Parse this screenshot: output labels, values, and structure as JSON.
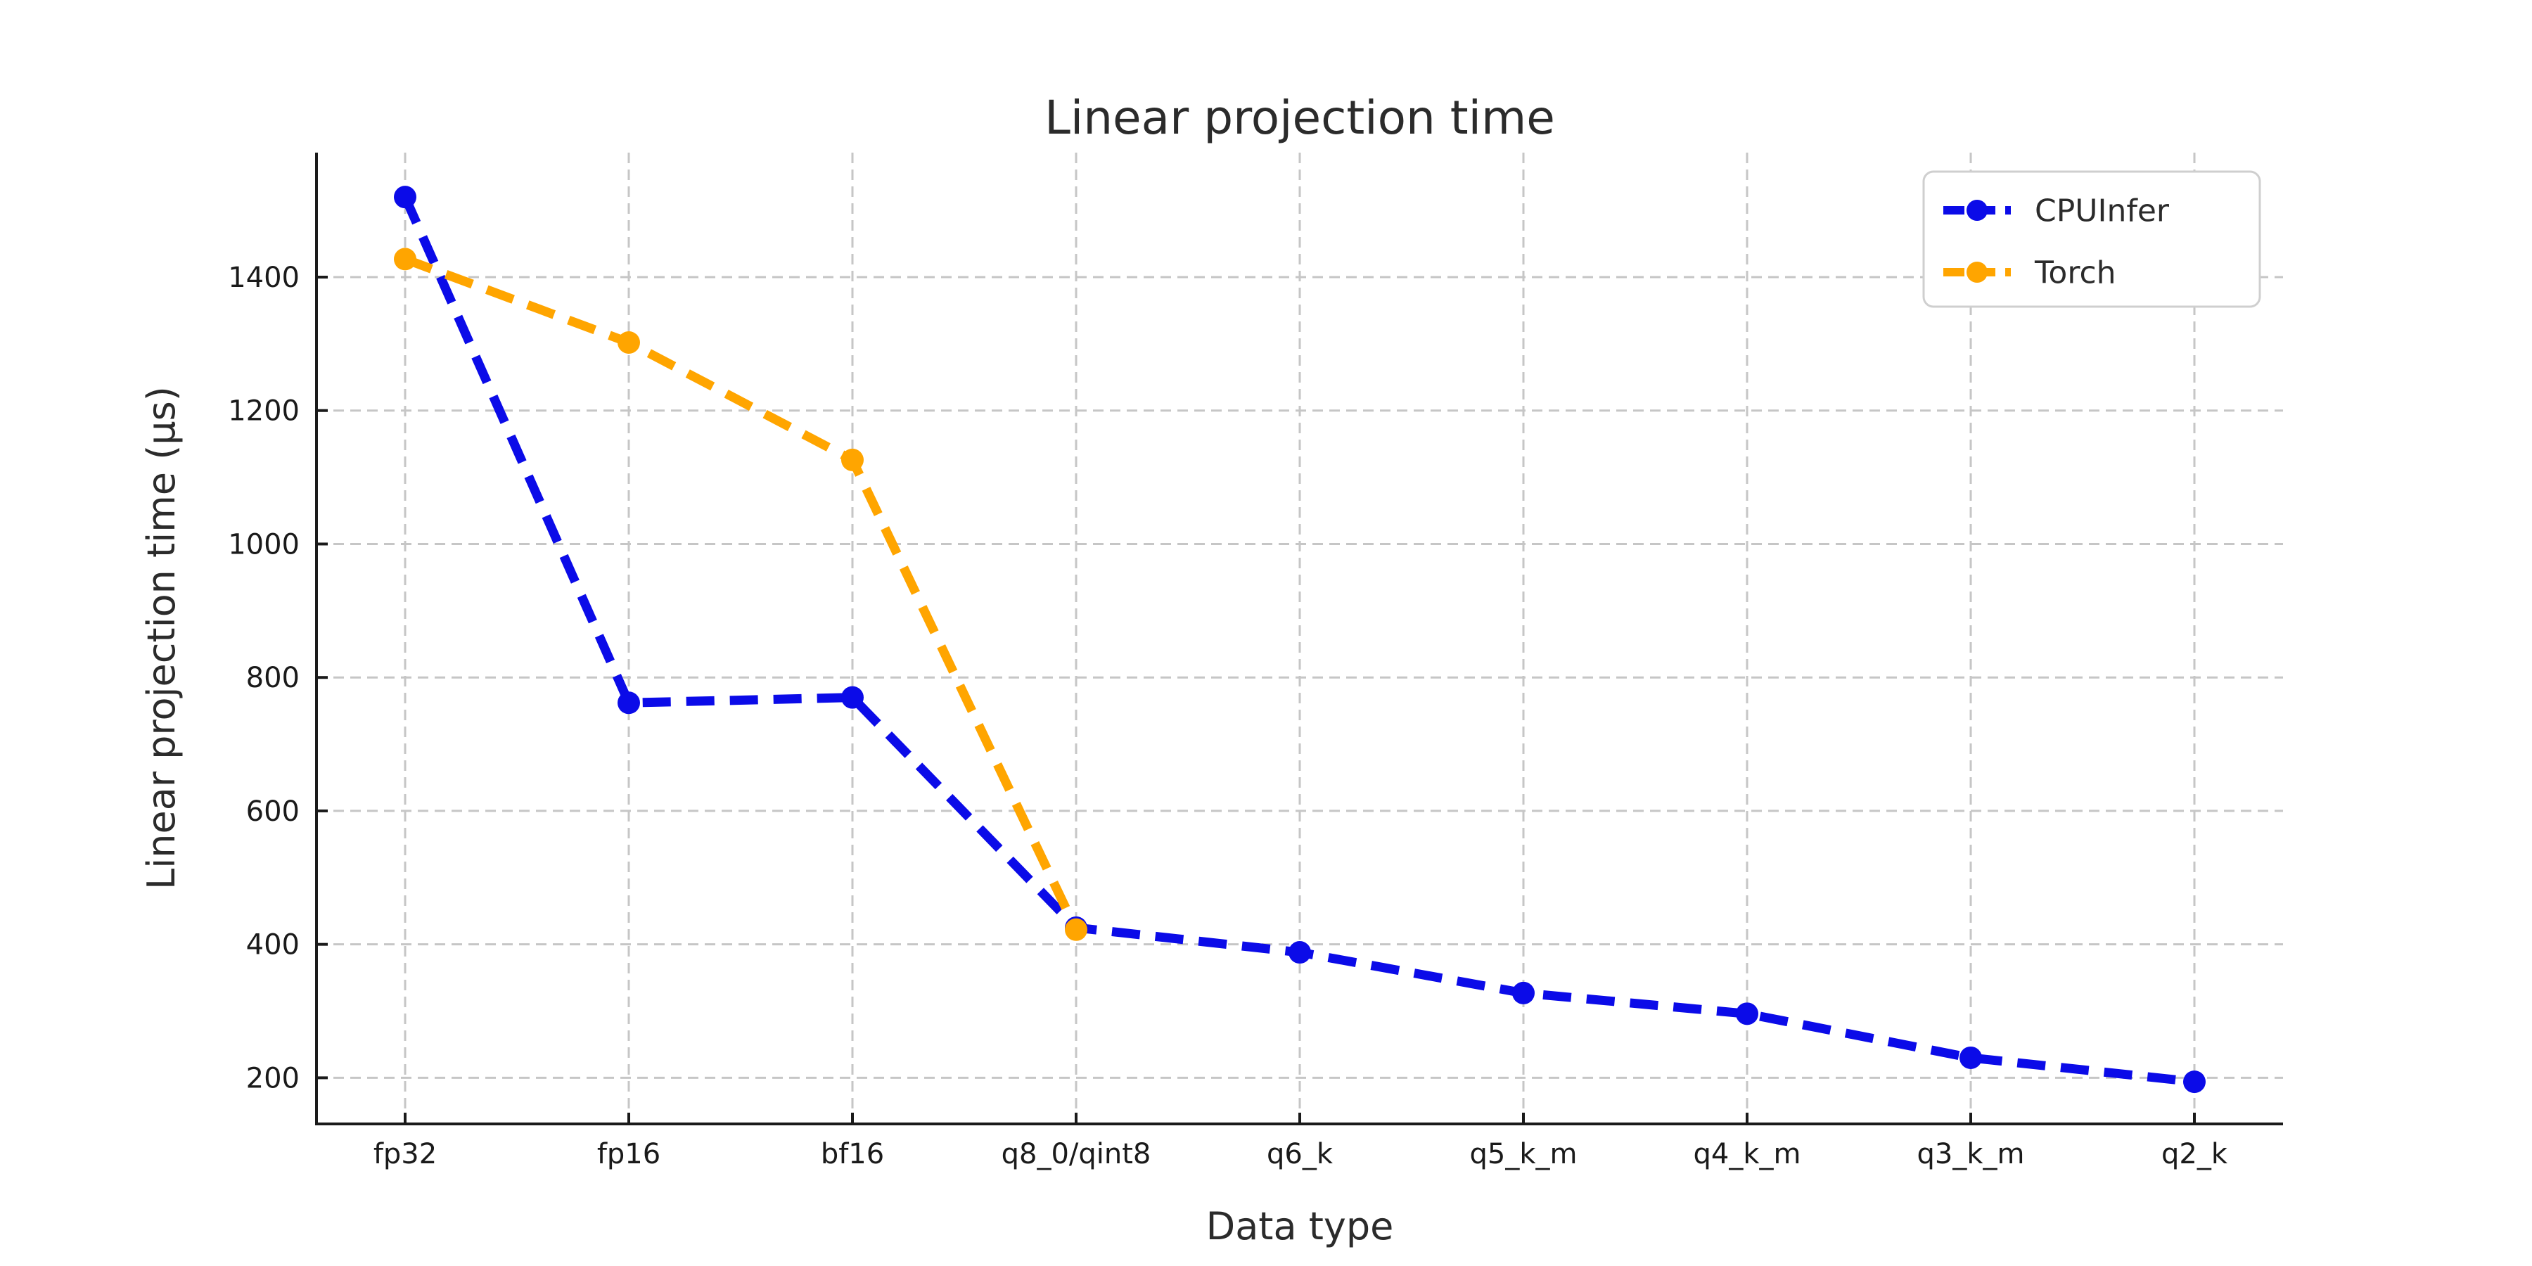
{
  "figure": {
    "background": "#ffffff"
  },
  "chart_data": {
    "type": "line",
    "title": "Linear projection time",
    "xlabel": "Data type",
    "ylabel": "Linear projection time (µs)",
    "categories": [
      "fp32",
      "fp16",
      "bf16",
      "q8_0/qint8",
      "q6_k",
      "q5_k_m",
      "q4_k_m",
      "q3_k_m",
      "q2_k"
    ],
    "yticks": [
      200,
      400,
      600,
      800,
      1000,
      1200,
      1400
    ],
    "ylim": [
      129,
      1586
    ],
    "grid": true,
    "grid_style": "dashed",
    "line_style": "dashed",
    "marker": "circle",
    "legend_position": "upper right",
    "series": [
      {
        "name": "CPUInfer",
        "color": "#0b0be8",
        "values": [
          1520,
          762,
          770,
          425,
          388,
          327,
          296,
          230,
          194
        ]
      },
      {
        "name": "Torch",
        "color": "#ffa500",
        "values": [
          1427,
          1302,
          1126,
          422
        ]
      }
    ],
    "colors": {
      "grid": "#c6c6c6",
      "spine": "#1a1a1a",
      "tick_label": "#1a1a1a",
      "text": "#2b2b2b",
      "legend_border": "#cfcfcf",
      "legend_background": "#ffffff"
    }
  }
}
